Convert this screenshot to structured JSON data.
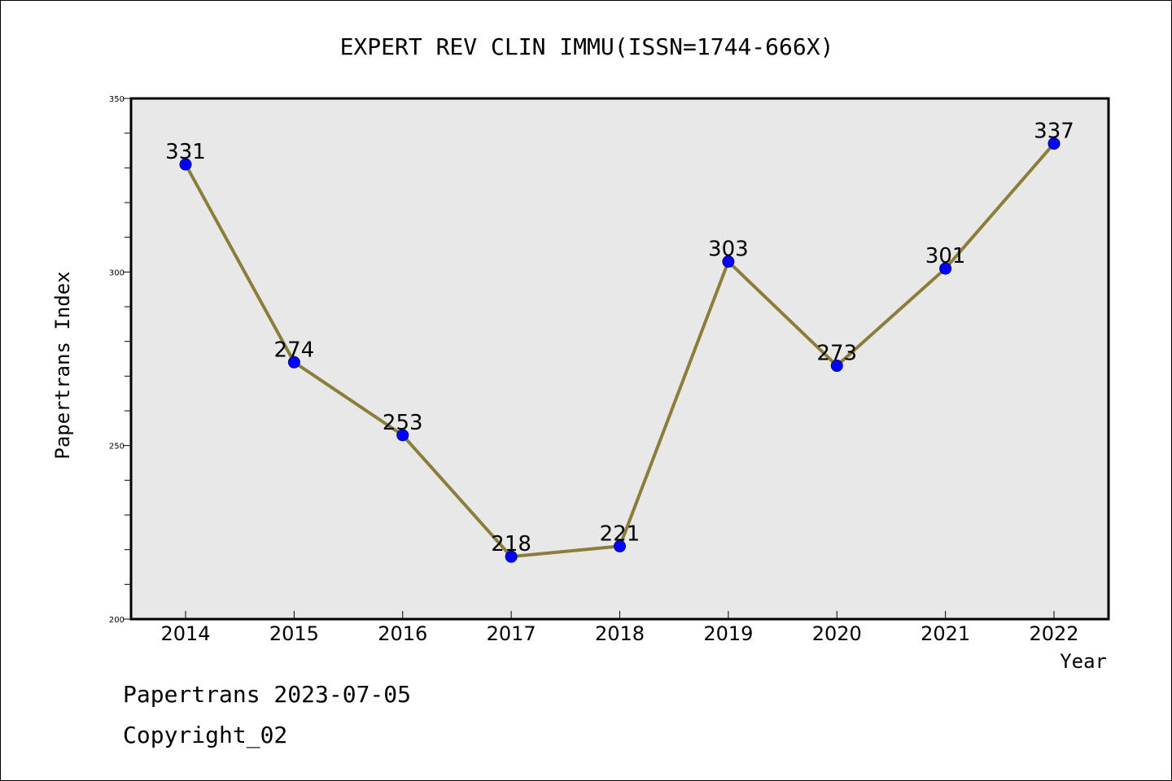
{
  "chart_data": {
    "type": "line",
    "title": "EXPERT REV CLIN IMMU(ISSN=1744-666X)",
    "xlabel": "Year",
    "ylabel": "Papertrans Index",
    "categories": [
      "2014",
      "2015",
      "2016",
      "2017",
      "2018",
      "2019",
      "2020",
      "2021",
      "2022"
    ],
    "values": [
      331,
      274,
      253,
      218,
      221,
      303,
      273,
      301,
      337
    ],
    "ylim": [
      200,
      350
    ],
    "yticks": [
      "200",
      "250",
      "300",
      "350"
    ],
    "grid": false,
    "legend": "none",
    "colors": {
      "line": "#8B7D3A",
      "marker": "#0000FF",
      "plot_background": "#E8E8E8"
    }
  },
  "footer": {
    "line1": "Papertrans 2023-07-05",
    "line2": "Copyright_02"
  }
}
